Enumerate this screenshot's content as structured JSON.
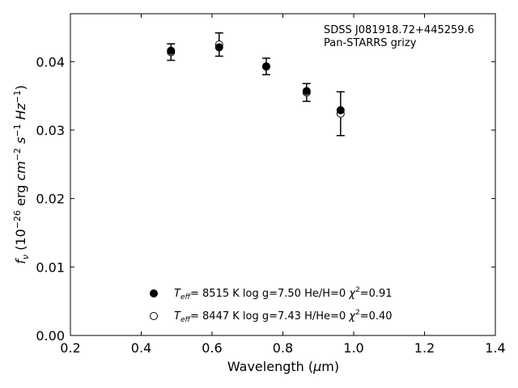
{
  "chart_data": {
    "type": "scatter",
    "title": "",
    "xlabel": "Wavelength (μm)",
    "ylabel": "f_ν (10^-26 erg cm^-2 s^-1 Hz^-1)",
    "xlim": [
      0.2,
      1.4
    ],
    "ylim": [
      0.0,
      0.047
    ],
    "xticks": [
      0.2,
      0.4,
      0.6,
      0.8,
      1.0,
      1.2,
      1.4
    ],
    "xtick_labels": [
      "0.2",
      "0.4",
      "0.6",
      "0.8",
      "1.0",
      "1.2",
      "1.4"
    ],
    "yticks": [
      0.0,
      0.01,
      0.02,
      0.03,
      0.04
    ],
    "ytick_labels": [
      "0.00",
      "0.01",
      "0.02",
      "0.03",
      "0.04"
    ],
    "grid": false,
    "annotation": {
      "line1": "SDSS J081918.72+445259.6",
      "line2": "Pan-STARRS grizy"
    },
    "observed": {
      "x": [
        0.484,
        0.62,
        0.753,
        0.867,
        0.963
      ],
      "y": [
        0.0414,
        0.0425,
        0.0393,
        0.0355,
        0.0324
      ],
      "yerr": [
        0.0012,
        0.0017,
        0.0012,
        0.0013,
        0.0032
      ]
    },
    "series": [
      {
        "name": "Teff= 8515 K  log g=7.50  He/H=0  χ²=0.91",
        "marker": "filled-circle",
        "x": [
          0.484,
          0.62,
          0.753,
          0.867,
          0.963
        ],
        "y": [
          0.0416,
          0.0421,
          0.0393,
          0.0357,
          0.0329
        ]
      },
      {
        "name": "Teff= 8447 K  log g=7.43  H/He=0  χ²=0.40",
        "marker": "open-circle",
        "x": [
          0.484,
          0.62,
          0.753,
          0.867,
          0.963
        ],
        "y": [
          0.0414,
          0.0425,
          0.0393,
          0.0355,
          0.0324
        ]
      }
    ],
    "legend": {
      "placement": "lower-center",
      "entries": [
        {
          "teff_sym": "T",
          "teff_sub": "eff",
          "rest": "=  8515 K  log g=7.50  He/H=0  ",
          "chi": "χ",
          "chi_sup": "2",
          "chi_val": "=0.91"
        },
        {
          "teff_sym": "T",
          "teff_sub": "eff",
          "rest": "=  8447 K  log g=7.43  H/He=0  ",
          "chi": "χ",
          "chi_sup": "2",
          "chi_val": "=0.40"
        }
      ]
    },
    "colors": {
      "marker": "#000000",
      "axis": "#000000",
      "background": "#ffffff"
    }
  }
}
